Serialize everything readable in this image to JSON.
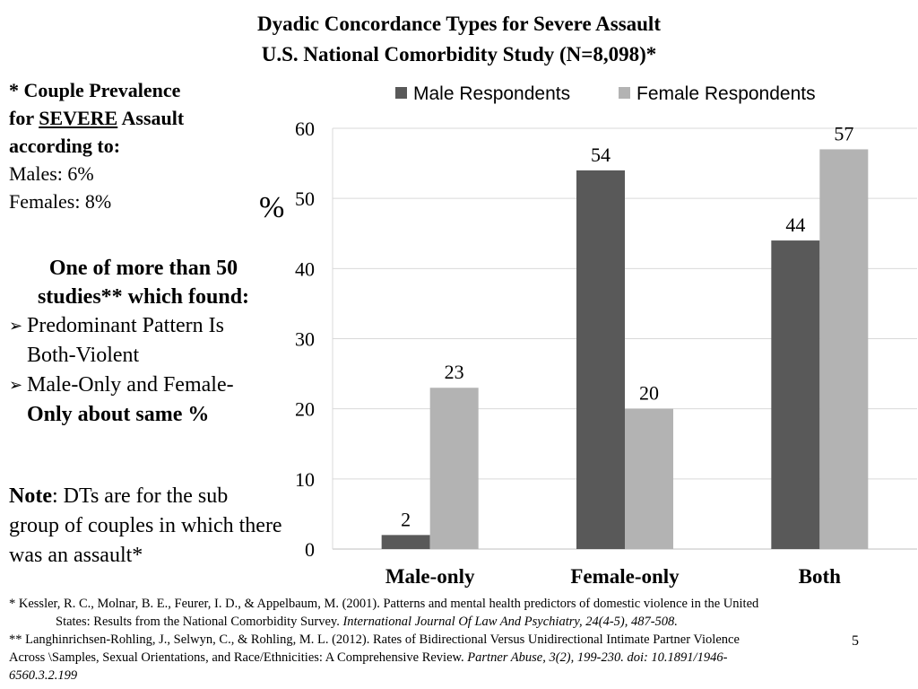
{
  "title": {
    "line1": "Dyadic Concordance Types for Severe Assault",
    "line2": "U.S. National Comorbidity Study (N=8,098)*"
  },
  "prevalence": {
    "line1": "* Couple Prevalence",
    "line2_prefix": "for ",
    "line2_emph": "SEVERE",
    "line2_suffix": " Assault",
    "line3": "according to:",
    "males": "Males: 6%",
    "females": "Females: 8%"
  },
  "study": {
    "heading_line1": "One of more than 50",
    "heading_line2": "studies**  which found:",
    "bullet1_line1": "Predominant Pattern Is",
    "bullet1_line2": "Both-Violent",
    "bullet2_line1": "Male-Only and Female-",
    "bullet2_line2": "Only about same %"
  },
  "note": {
    "label": "Note",
    "text": ":  DTs are for the sub group of couples in which there was an assault*"
  },
  "pct_label": "%",
  "chart_data": {
    "type": "bar",
    "categories": [
      "Male-only",
      "Female-only",
      "Both"
    ],
    "series": [
      {
        "name": "Male Respondents",
        "values": [
          2,
          54,
          44
        ],
        "color": "#595959"
      },
      {
        "name": "Female Respondents",
        "values": [
          23,
          20,
          57
        ],
        "color": "#b3b3b3"
      }
    ],
    "ylim": [
      0,
      60
    ],
    "yticks": [
      0,
      10,
      20,
      30,
      40,
      50,
      60
    ],
    "grid": true,
    "legend": "top"
  },
  "references": {
    "ref1_text": "* Kessler, R. C., Molnar, B. E., Feurer, I. D., & Appelbaum, M. (2001). Patterns and mental health predictors of domestic violence in the United",
    "ref1_cont": "States: Results from the National Comorbidity Survey. ",
    "ref1_journal": "International Journal Of Law And Psychiatry, 24(4-5), 487-508.",
    "ref2_text": "**  Langhinrichsen-Rohling, J., Selwyn, C., & Rohling, M. L. (2012). Rates of Bidirectional Versus Unidirectional Intimate Partner Violence",
    "ref2_cont": "Across \\Samples, Sexual Orientations, and Race/Ethnicities: A Comprehensive Review. ",
    "ref2_journal": "Partner Abuse, 3(2), 199-230. doi: 10.1891/1946-",
    "ref2_journal2": "6560.3.2.199"
  },
  "page_number": "5"
}
